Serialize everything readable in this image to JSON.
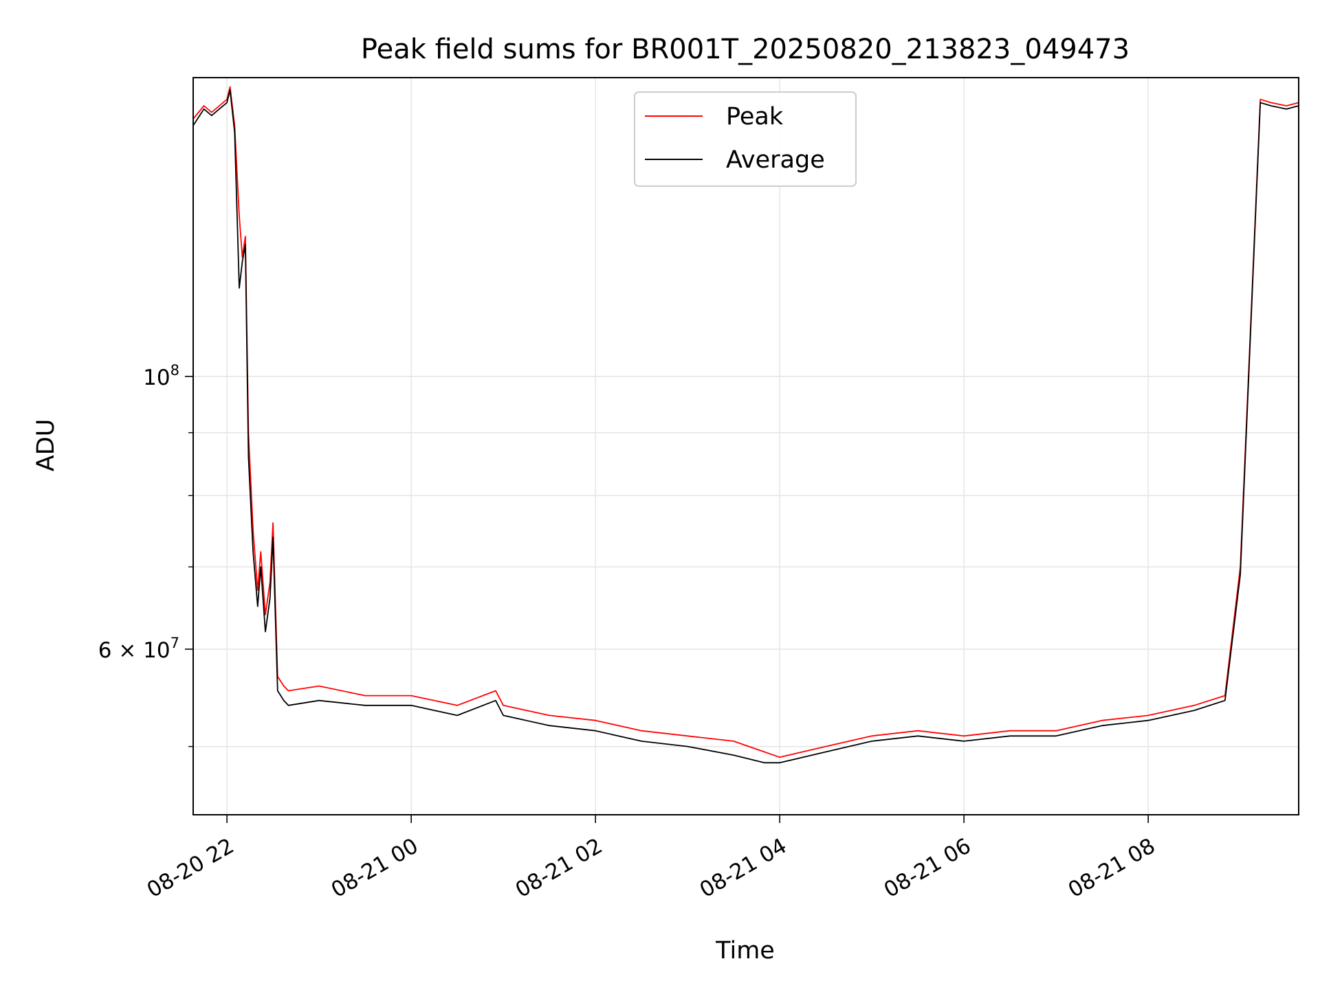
{
  "chart_data": {
    "type": "line",
    "title": "Peak field sums for BR001T_20250820_213823_049473",
    "xlabel": "Time",
    "ylabel": "ADU",
    "yscale": "log",
    "ylim": [
      44000000,
      175000000
    ],
    "xlim": [
      "2025-08-20 21:38",
      "2025-08-21 09:38"
    ],
    "grid": true,
    "legend": "upper center",
    "x_ticks": [
      {
        "t": "2025-08-20 22:00",
        "label": "08-20 22"
      },
      {
        "t": "2025-08-21 00:00",
        "label": "08-21 00"
      },
      {
        "t": "2025-08-21 02:00",
        "label": "08-21 02"
      },
      {
        "t": "2025-08-21 04:00",
        "label": "08-21 04"
      },
      {
        "t": "2025-08-21 06:00",
        "label": "08-21 06"
      },
      {
        "t": "2025-08-21 08:00",
        "label": "08-21 08"
      }
    ],
    "y_major_ticks": [
      {
        "value": 60000000,
        "base": "6 × 10",
        "exp": "7"
      },
      {
        "value": 100000000,
        "base": "10",
        "exp": "8"
      }
    ],
    "y_minor_ticks": [
      50000000,
      70000000,
      80000000,
      90000000
    ],
    "x": [
      "2025-08-20 21:38",
      "2025-08-20 21:45",
      "2025-08-20 21:50",
      "2025-08-20 21:55",
      "2025-08-20 22:00",
      "2025-08-20 22:02",
      "2025-08-20 22:05",
      "2025-08-20 22:08",
      "2025-08-20 22:10",
      "2025-08-20 22:12",
      "2025-08-20 22:14",
      "2025-08-20 22:17",
      "2025-08-20 22:20",
      "2025-08-20 22:22",
      "2025-08-20 22:25",
      "2025-08-20 22:28",
      "2025-08-20 22:30",
      "2025-08-20 22:33",
      "2025-08-20 22:37",
      "2025-08-20 22:40",
      "2025-08-20 23:00",
      "2025-08-20 23:30",
      "2025-08-21 00:00",
      "2025-08-21 00:30",
      "2025-08-21 00:55",
      "2025-08-21 01:00",
      "2025-08-21 01:30",
      "2025-08-21 02:00",
      "2025-08-21 02:30",
      "2025-08-21 03:00",
      "2025-08-21 03:30",
      "2025-08-21 03:50",
      "2025-08-21 04:00",
      "2025-08-21 04:30",
      "2025-08-21 05:00",
      "2025-08-21 05:30",
      "2025-08-21 06:00",
      "2025-08-21 06:30",
      "2025-08-21 07:00",
      "2025-08-21 07:30",
      "2025-08-21 08:00",
      "2025-08-21 08:30",
      "2025-08-21 08:50",
      "2025-08-21 09:00",
      "2025-08-21 09:08",
      "2025-08-21 09:13",
      "2025-08-21 09:20",
      "2025-08-21 09:30",
      "2025-08-21 09:38"
    ],
    "series": [
      {
        "name": "Peak",
        "color": "#ff0000",
        "values": [
          162000000,
          166000000,
          164000000,
          166000000,
          168000000,
          172000000,
          160000000,
          135000000,
          125000000,
          130000000,
          90000000,
          75000000,
          67000000,
          72000000,
          64000000,
          68000000,
          76000000,
          57000000,
          56000000,
          55500000,
          56000000,
          55000000,
          55000000,
          54000000,
          55500000,
          54000000,
          53000000,
          52500000,
          51500000,
          51000000,
          50500000,
          49500000,
          49000000,
          50000000,
          51000000,
          51500000,
          51000000,
          51500000,
          51500000,
          52500000,
          53000000,
          54000000,
          55000000,
          70000000,
          120000000,
          168000000,
          167000000,
          166000000,
          167000000
        ]
      },
      {
        "name": "Average",
        "color": "#000000",
        "values": [
          160000000,
          165000000,
          163000000,
          165000000,
          167000000,
          171000000,
          158000000,
          118000000,
          124000000,
          128000000,
          86000000,
          72000000,
          65000000,
          70000000,
          62000000,
          66000000,
          74000000,
          55500000,
          54500000,
          54000000,
          54500000,
          54000000,
          54000000,
          53000000,
          54500000,
          53000000,
          52000000,
          51500000,
          50500000,
          50000000,
          49200000,
          48500000,
          48500000,
          49500000,
          50500000,
          51000000,
          50500000,
          51000000,
          51000000,
          52000000,
          52500000,
          53500000,
          54500000,
          69000000,
          119000000,
          167000000,
          166000000,
          165000000,
          166000000
        ]
      }
    ]
  }
}
